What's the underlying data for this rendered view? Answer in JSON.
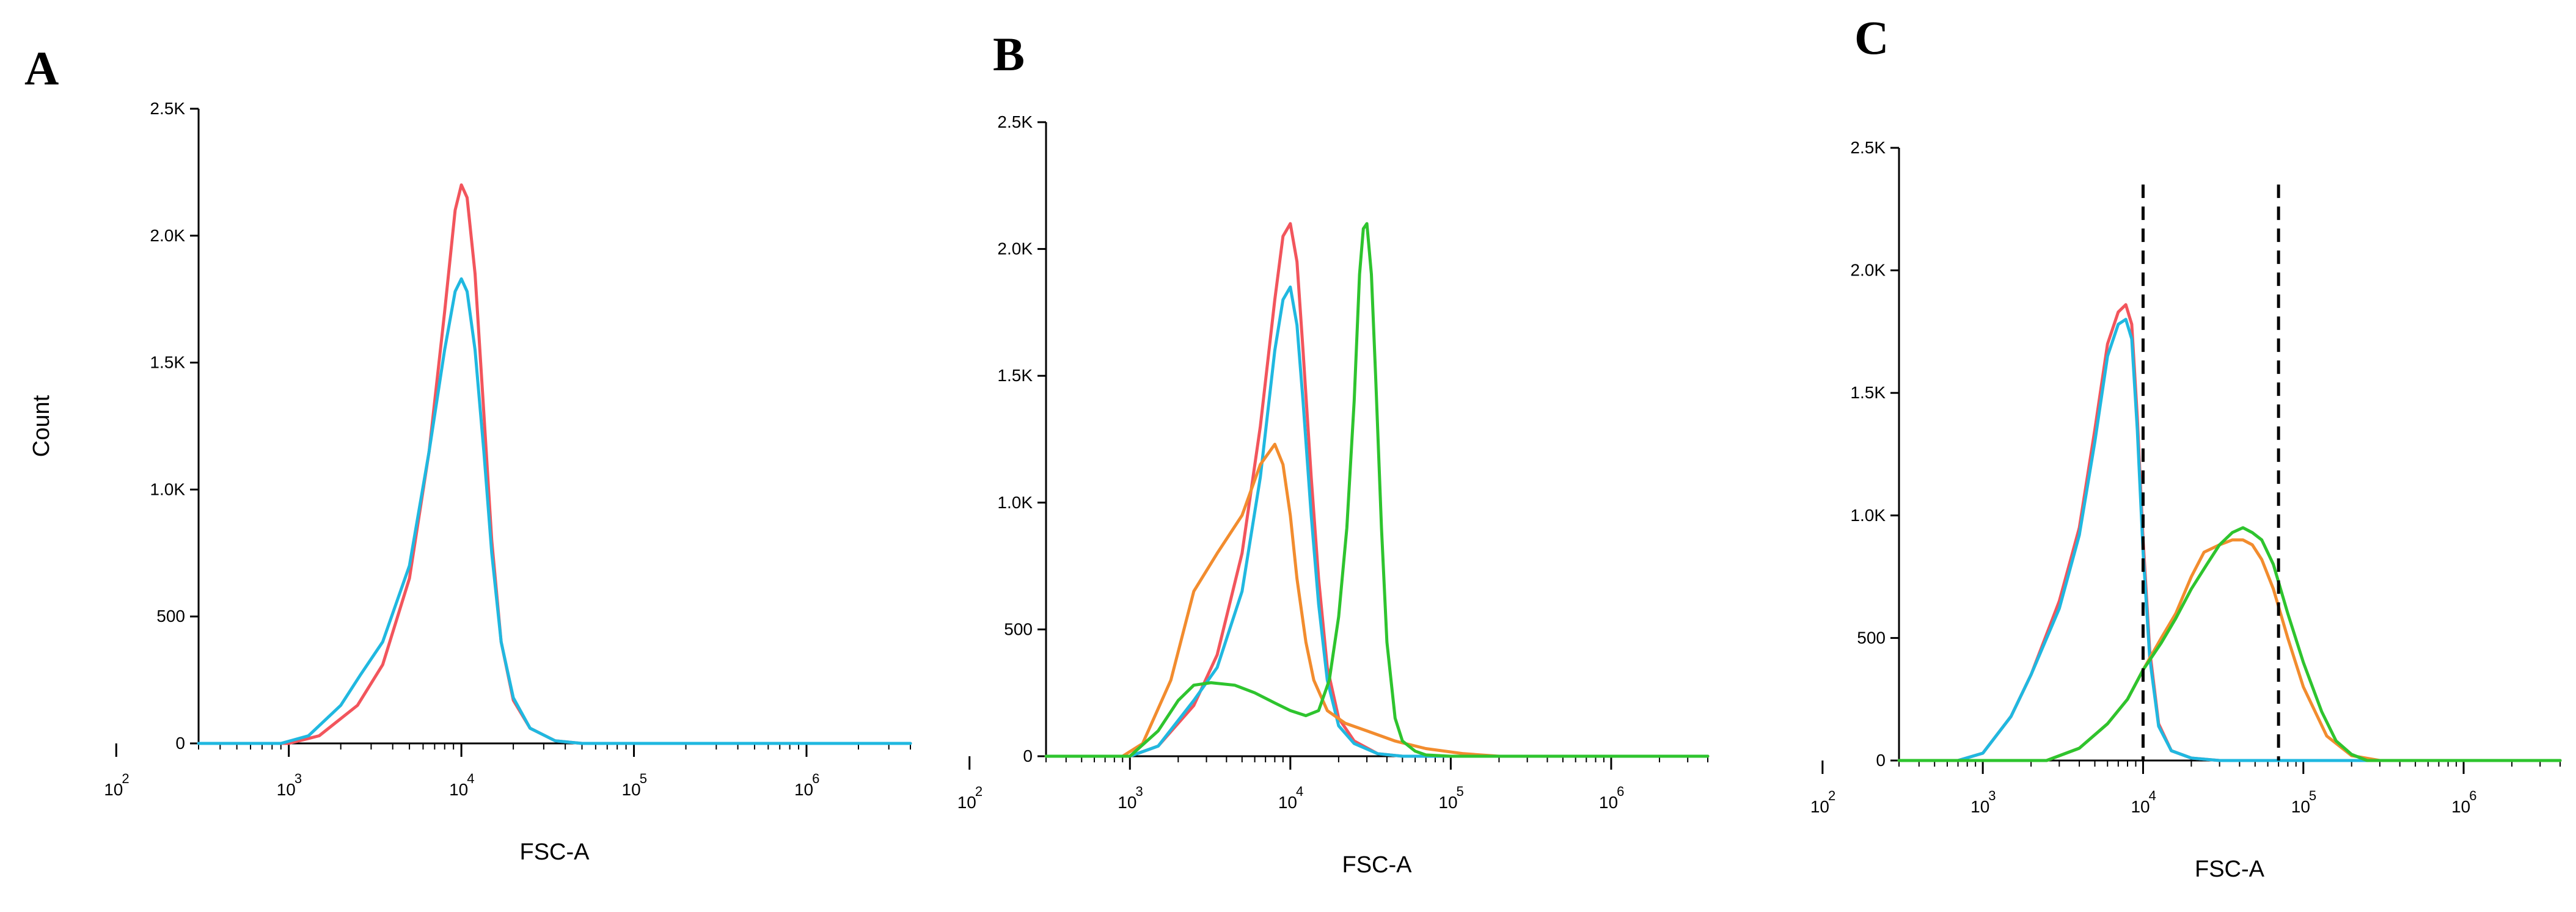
{
  "chart_data": [
    {
      "panel": "A",
      "type": "line",
      "title": "",
      "xlabel": "FSC-A",
      "ylabel": "Count",
      "x_scale": "log10",
      "xlim": [
        300,
        4000000
      ],
      "ylim": [
        0,
        2500
      ],
      "x_ticks": [
        {
          "base": "10",
          "exp": "2",
          "value": 100
        },
        {
          "base": "10",
          "exp": "3",
          "value": 1000
        },
        {
          "base": "10",
          "exp": "4",
          "value": 10000
        },
        {
          "base": "10",
          "exp": "5",
          "value": 100000
        },
        {
          "base": "10",
          "exp": "6",
          "value": 1000000
        }
      ],
      "y_ticks": [
        {
          "label": "0",
          "value": 0
        },
        {
          "label": "500",
          "value": 500
        },
        {
          "label": "1.0K",
          "value": 1000
        },
        {
          "label": "1.5K",
          "value": 1500
        },
        {
          "label": "2.0K",
          "value": 2000
        },
        {
          "label": "2.5K",
          "value": 2500
        }
      ],
      "series": [
        {
          "name": "red",
          "color": "#f2555c",
          "x": [
            300,
            1000,
            1500,
            2500,
            3500,
            5000,
            6500,
            8000,
            9200,
            10000,
            10800,
            12000,
            13500,
            15000,
            17000,
            20000,
            25000,
            35000,
            50000,
            4000000
          ],
          "y": [
            0,
            0,
            30,
            150,
            310,
            650,
            1150,
            1700,
            2100,
            2200,
            2150,
            1850,
            1300,
            800,
            400,
            170,
            60,
            10,
            0,
            0
          ]
        },
        {
          "name": "cyan",
          "color": "#20b8e0",
          "x": [
            300,
            900,
            1300,
            2000,
            2600,
            3500,
            5000,
            6500,
            8000,
            9200,
            10000,
            10800,
            12000,
            13500,
            15000,
            17000,
            20000,
            25000,
            35000,
            50000,
            4000000
          ],
          "y": [
            0,
            0,
            30,
            150,
            270,
            400,
            700,
            1150,
            1550,
            1780,
            1830,
            1780,
            1550,
            1150,
            750,
            400,
            180,
            60,
            10,
            0,
            0
          ]
        }
      ]
    },
    {
      "panel": "B",
      "type": "line",
      "title": "",
      "xlabel": "FSC-A",
      "ylabel": "",
      "x_scale": "log10",
      "xlim": [
        300,
        4000000
      ],
      "ylim": [
        0,
        2500
      ],
      "x_ticks": [
        {
          "base": "10",
          "exp": "2",
          "value": 100
        },
        {
          "base": "10",
          "exp": "3",
          "value": 1000
        },
        {
          "base": "10",
          "exp": "4",
          "value": 10000
        },
        {
          "base": "10",
          "exp": "5",
          "value": 100000
        },
        {
          "base": "10",
          "exp": "6",
          "value": 1000000
        }
      ],
      "y_ticks": [
        {
          "label": "0",
          "value": 0
        },
        {
          "label": "500",
          "value": 500
        },
        {
          "label": "1.0K",
          "value": 1000
        },
        {
          "label": "1.5K",
          "value": 1500
        },
        {
          "label": "2.0K",
          "value": 2000
        },
        {
          "label": "2.5K",
          "value": 2500
        }
      ],
      "series": [
        {
          "name": "red",
          "color": "#f2555c",
          "x": [
            300,
            1000,
            1500,
            2500,
            3500,
            5000,
            6500,
            8000,
            9000,
            10000,
            11000,
            12000,
            13500,
            15000,
            17000,
            20000,
            25000,
            35000,
            50000,
            4000000
          ],
          "y": [
            0,
            0,
            40,
            200,
            400,
            800,
            1300,
            1800,
            2050,
            2100,
            1950,
            1600,
            1100,
            700,
            350,
            150,
            60,
            10,
            0,
            0
          ]
        },
        {
          "name": "cyan",
          "color": "#20b8e0",
          "x": [
            300,
            1000,
            1500,
            2500,
            3500,
            5000,
            6500,
            8000,
            9000,
            10000,
            11000,
            12000,
            13500,
            15000,
            17000,
            20000,
            25000,
            35000,
            50000,
            4000000
          ],
          "y": [
            0,
            0,
            40,
            220,
            350,
            650,
            1100,
            1600,
            1800,
            1850,
            1700,
            1400,
            950,
            600,
            300,
            120,
            50,
            10,
            0,
            0
          ]
        },
        {
          "name": "orange",
          "color": "#f28c2e",
          "x": [
            300,
            900,
            1200,
            1800,
            2500,
            3500,
            5000,
            6500,
            8000,
            9000,
            10000,
            11000,
            12500,
            14000,
            17000,
            22000,
            30000,
            45000,
            70000,
            120000,
            200000,
            4000000
          ],
          "y": [
            0,
            0,
            50,
            300,
            650,
            800,
            950,
            1150,
            1230,
            1150,
            950,
            700,
            450,
            300,
            180,
            130,
            100,
            60,
            30,
            10,
            0,
            0
          ]
        },
        {
          "name": "green",
          "color": "#2ec42e",
          "x": [
            300,
            1000,
            1500,
            2000,
            2500,
            3200,
            4500,
            6000,
            8000,
            10000,
            12500,
            15000,
            17500,
            20000,
            22500,
            25000,
            27000,
            28500,
            30000,
            32000,
            34000,
            37000,
            40000,
            45000,
            50000,
            60000,
            70000,
            100000,
            4000000
          ],
          "y": [
            0,
            0,
            100,
            220,
            280,
            290,
            280,
            250,
            210,
            180,
            160,
            180,
            300,
            550,
            900,
            1400,
            1900,
            2080,
            2100,
            1900,
            1500,
            900,
            450,
            150,
            60,
            20,
            5,
            0,
            0
          ]
        }
      ]
    },
    {
      "panel": "C",
      "type": "line",
      "title": "",
      "xlabel": "FSC-A",
      "ylabel": "",
      "x_scale": "log10",
      "xlim": [
        300,
        4000000
      ],
      "ylim": [
        0,
        2500
      ],
      "x_ticks": [
        {
          "base": "10",
          "exp": "2",
          "value": 100
        },
        {
          "base": "10",
          "exp": "3",
          "value": 1000
        },
        {
          "base": "10",
          "exp": "4",
          "value": 10000
        },
        {
          "base": "10",
          "exp": "5",
          "value": 100000
        },
        {
          "base": "10",
          "exp": "6",
          "value": 1000000
        }
      ],
      "y_ticks": [
        {
          "label": "0",
          "value": 0
        },
        {
          "label": "500",
          "value": 500
        },
        {
          "label": "1.0K",
          "value": 1000
        },
        {
          "label": "1.5K",
          "value": 1500
        },
        {
          "label": "2.0K",
          "value": 2000
        },
        {
          "label": "2.5K",
          "value": 2500
        }
      ],
      "gates": [
        10000,
        70000
      ],
      "series": [
        {
          "name": "red",
          "color": "#f2555c",
          "x": [
            300,
            700,
            1000,
            1500,
            2000,
            3000,
            4000,
            5000,
            6000,
            7000,
            7800,
            8500,
            9200,
            10000,
            11000,
            12500,
            15000,
            20000,
            30000,
            4000000
          ],
          "y": [
            0,
            0,
            30,
            180,
            350,
            650,
            950,
            1350,
            1700,
            1830,
            1860,
            1780,
            1400,
            900,
            450,
            150,
            40,
            10,
            0,
            0
          ]
        },
        {
          "name": "cyan",
          "color": "#20b8e0",
          "x": [
            300,
            700,
            1000,
            1500,
            2000,
            3000,
            4000,
            5000,
            6000,
            7000,
            7800,
            8500,
            9200,
            10000,
            11000,
            12500,
            15000,
            20000,
            30000,
            4000000
          ],
          "y": [
            0,
            0,
            30,
            180,
            350,
            620,
            920,
            1300,
            1650,
            1780,
            1800,
            1720,
            1350,
            850,
            420,
            140,
            40,
            10,
            0,
            0
          ]
        },
        {
          "name": "orange",
          "color": "#f28c2e",
          "x": [
            300,
            2500,
            4000,
            6000,
            8000,
            10000,
            13000,
            16000,
            20000,
            24000,
            30000,
            36000,
            42000,
            48000,
            55000,
            65000,
            80000,
            100000,
            140000,
            200000,
            300000,
            4000000
          ],
          "y": [
            0,
            0,
            50,
            150,
            250,
            370,
            500,
            600,
            750,
            850,
            880,
            900,
            900,
            880,
            820,
            700,
            500,
            300,
            100,
            20,
            0,
            0
          ]
        },
        {
          "name": "green",
          "color": "#2ec42e",
          "x": [
            300,
            2500,
            4000,
            6000,
            8000,
            10000,
            13000,
            16000,
            20000,
            25000,
            30000,
            36000,
            42000,
            48000,
            55000,
            65000,
            80000,
            100000,
            130000,
            160000,
            200000,
            250000,
            4000000
          ],
          "y": [
            0,
            0,
            50,
            150,
            250,
            370,
            480,
            580,
            700,
            800,
            880,
            930,
            950,
            930,
            900,
            800,
            600,
            400,
            200,
            80,
            25,
            0,
            0
          ]
        }
      ]
    }
  ],
  "panels": [
    {
      "letter": "A"
    },
    {
      "letter": "B"
    },
    {
      "letter": "C"
    }
  ]
}
